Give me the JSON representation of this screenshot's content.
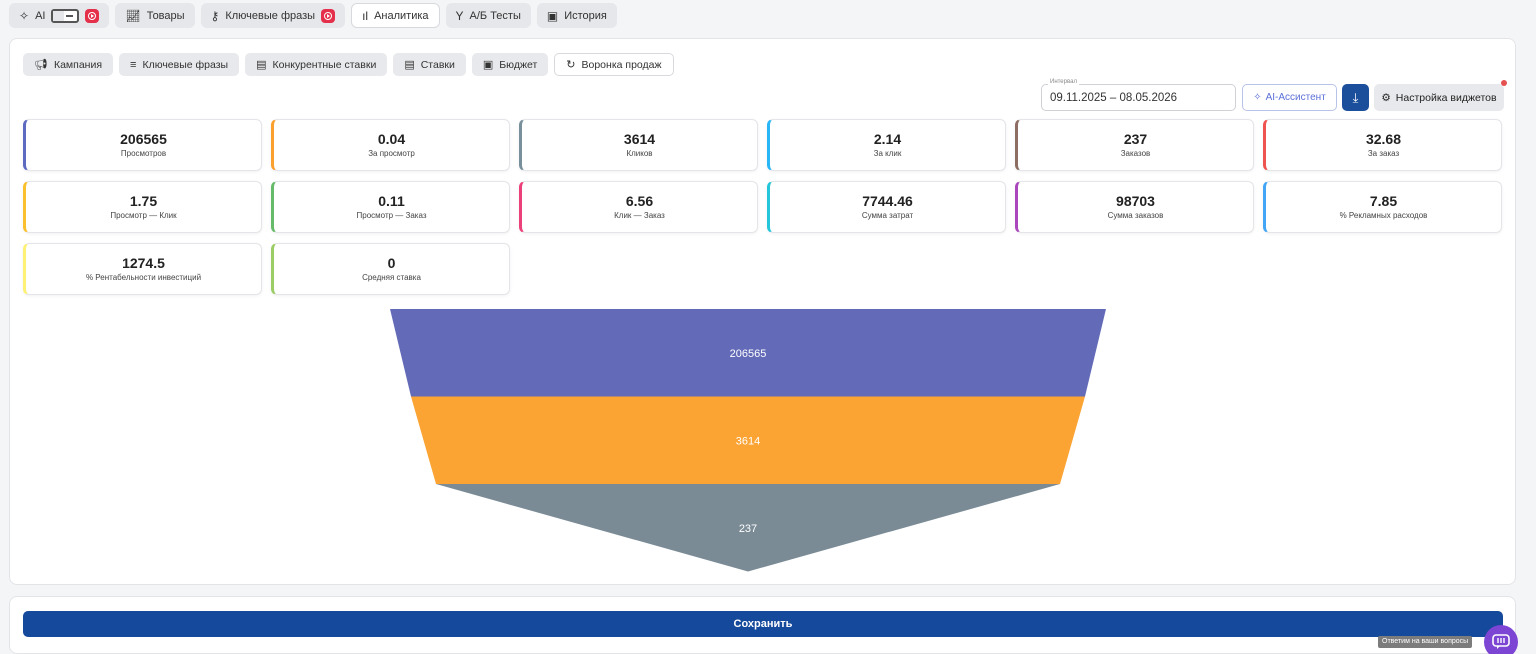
{
  "top_tabs": {
    "ai": "AI",
    "products": "Товары",
    "keywords": "Ключевые фразы",
    "analytics": "Аналитика",
    "ab_tests": "А/Б Тесты",
    "history": "История"
  },
  "sub_tabs": [
    "Кампания",
    "Ключевые фразы",
    "Конкурентные ставки",
    "Ставки",
    "Бюджет",
    "Воронка продаж"
  ],
  "interval": {
    "label": "Интервал",
    "value": "09.11.2025 – 08.05.2026"
  },
  "ai_assistant": "AI-Ассистент",
  "widget_settings": "Настройка виджетов",
  "metrics": [
    {
      "value": "206565",
      "label": "Просмотров",
      "color": "#5c6bc0"
    },
    {
      "value": "0.04",
      "label": "За просмотр",
      "color": "#fb9f2e"
    },
    {
      "value": "3614",
      "label": "Кликов",
      "color": "#78909c"
    },
    {
      "value": "2.14",
      "label": "За клик",
      "color": "#29b6f6"
    },
    {
      "value": "237",
      "label": "Заказов",
      "color": "#8d6e63"
    },
    {
      "value": "32.68",
      "label": "За заказ",
      "color": "#ef5350"
    },
    {
      "value": "1.75",
      "label": "Просмотр — Клик",
      "color": "#fbc02d"
    },
    {
      "value": "0.11",
      "label": "Просмотр — Заказ",
      "color": "#66bb6a"
    },
    {
      "value": "6.56",
      "label": "Клик — Заказ",
      "color": "#ec407a"
    },
    {
      "value": "7744.46",
      "label": "Сумма затрат",
      "color": "#26c6da"
    },
    {
      "value": "98703",
      "label": "Сумма заказов",
      "color": "#ab47bc"
    },
    {
      "value": "7.85",
      "label": "% Рекламных расходов",
      "color": "#42a5f5"
    },
    {
      "value": "1274.5",
      "label": "% Рентабельности инвестиций",
      "color": "#fff176"
    },
    {
      "value": "0",
      "label": "Средняя ставка",
      "color": "#9ccc65"
    }
  ],
  "chart_data": {
    "type": "funnel",
    "stages": [
      {
        "value": 206565,
        "label": "206565",
        "color": "#636bb9"
      },
      {
        "value": 3614,
        "label": "3614",
        "color": "#fba333"
      },
      {
        "value": 237,
        "label": "237",
        "color": "#7a8b96"
      }
    ]
  },
  "save": "Сохранить",
  "chat_tooltip": "Ответим на ваши вопросы"
}
